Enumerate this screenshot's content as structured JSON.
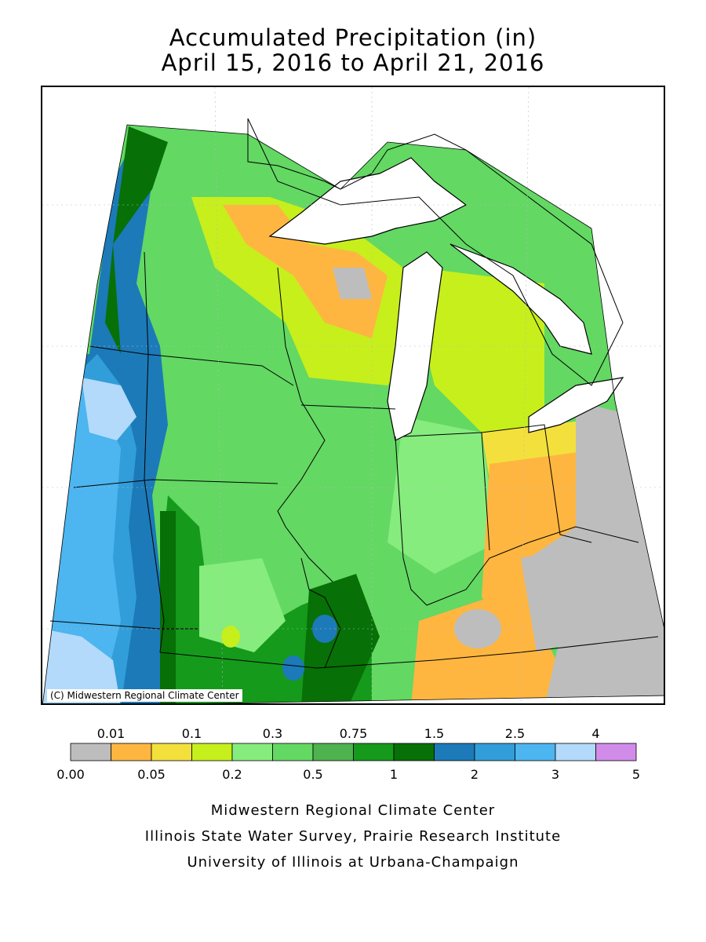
{
  "title": {
    "line1": "Accumulated Precipitation (in)",
    "line2": "April 15, 2016 to April 21, 2016"
  },
  "map": {
    "copyright": "(C) Midwestern Regional Climate Center"
  },
  "legend": {
    "upper_labels": [
      "0.01",
      "0.1",
      "0.3",
      "0.75",
      "1.5",
      "2.5",
      "4"
    ],
    "lower_labels": [
      "0.00",
      "0.05",
      "0.2",
      "0.5",
      "1",
      "2",
      "3",
      "5"
    ],
    "colors": [
      "#bdbdbd",
      "#ffb640",
      "#f3e03d",
      "#c6ef1c",
      "#86ec7e",
      "#63d863",
      "#4eb24e",
      "#159a1b",
      "#077007",
      "#1c7ab8",
      "#329ed9",
      "#4db5ef",
      "#b3dafa",
      "#d18ce9"
    ],
    "ocean": "#ffffff"
  },
  "credits": {
    "line1": "Midwestern Regional Climate Center",
    "line2": "Illinois State Water Survey, Prairie Research Institute",
    "line3": "University of Illinois at Urbana-Champaign"
  }
}
